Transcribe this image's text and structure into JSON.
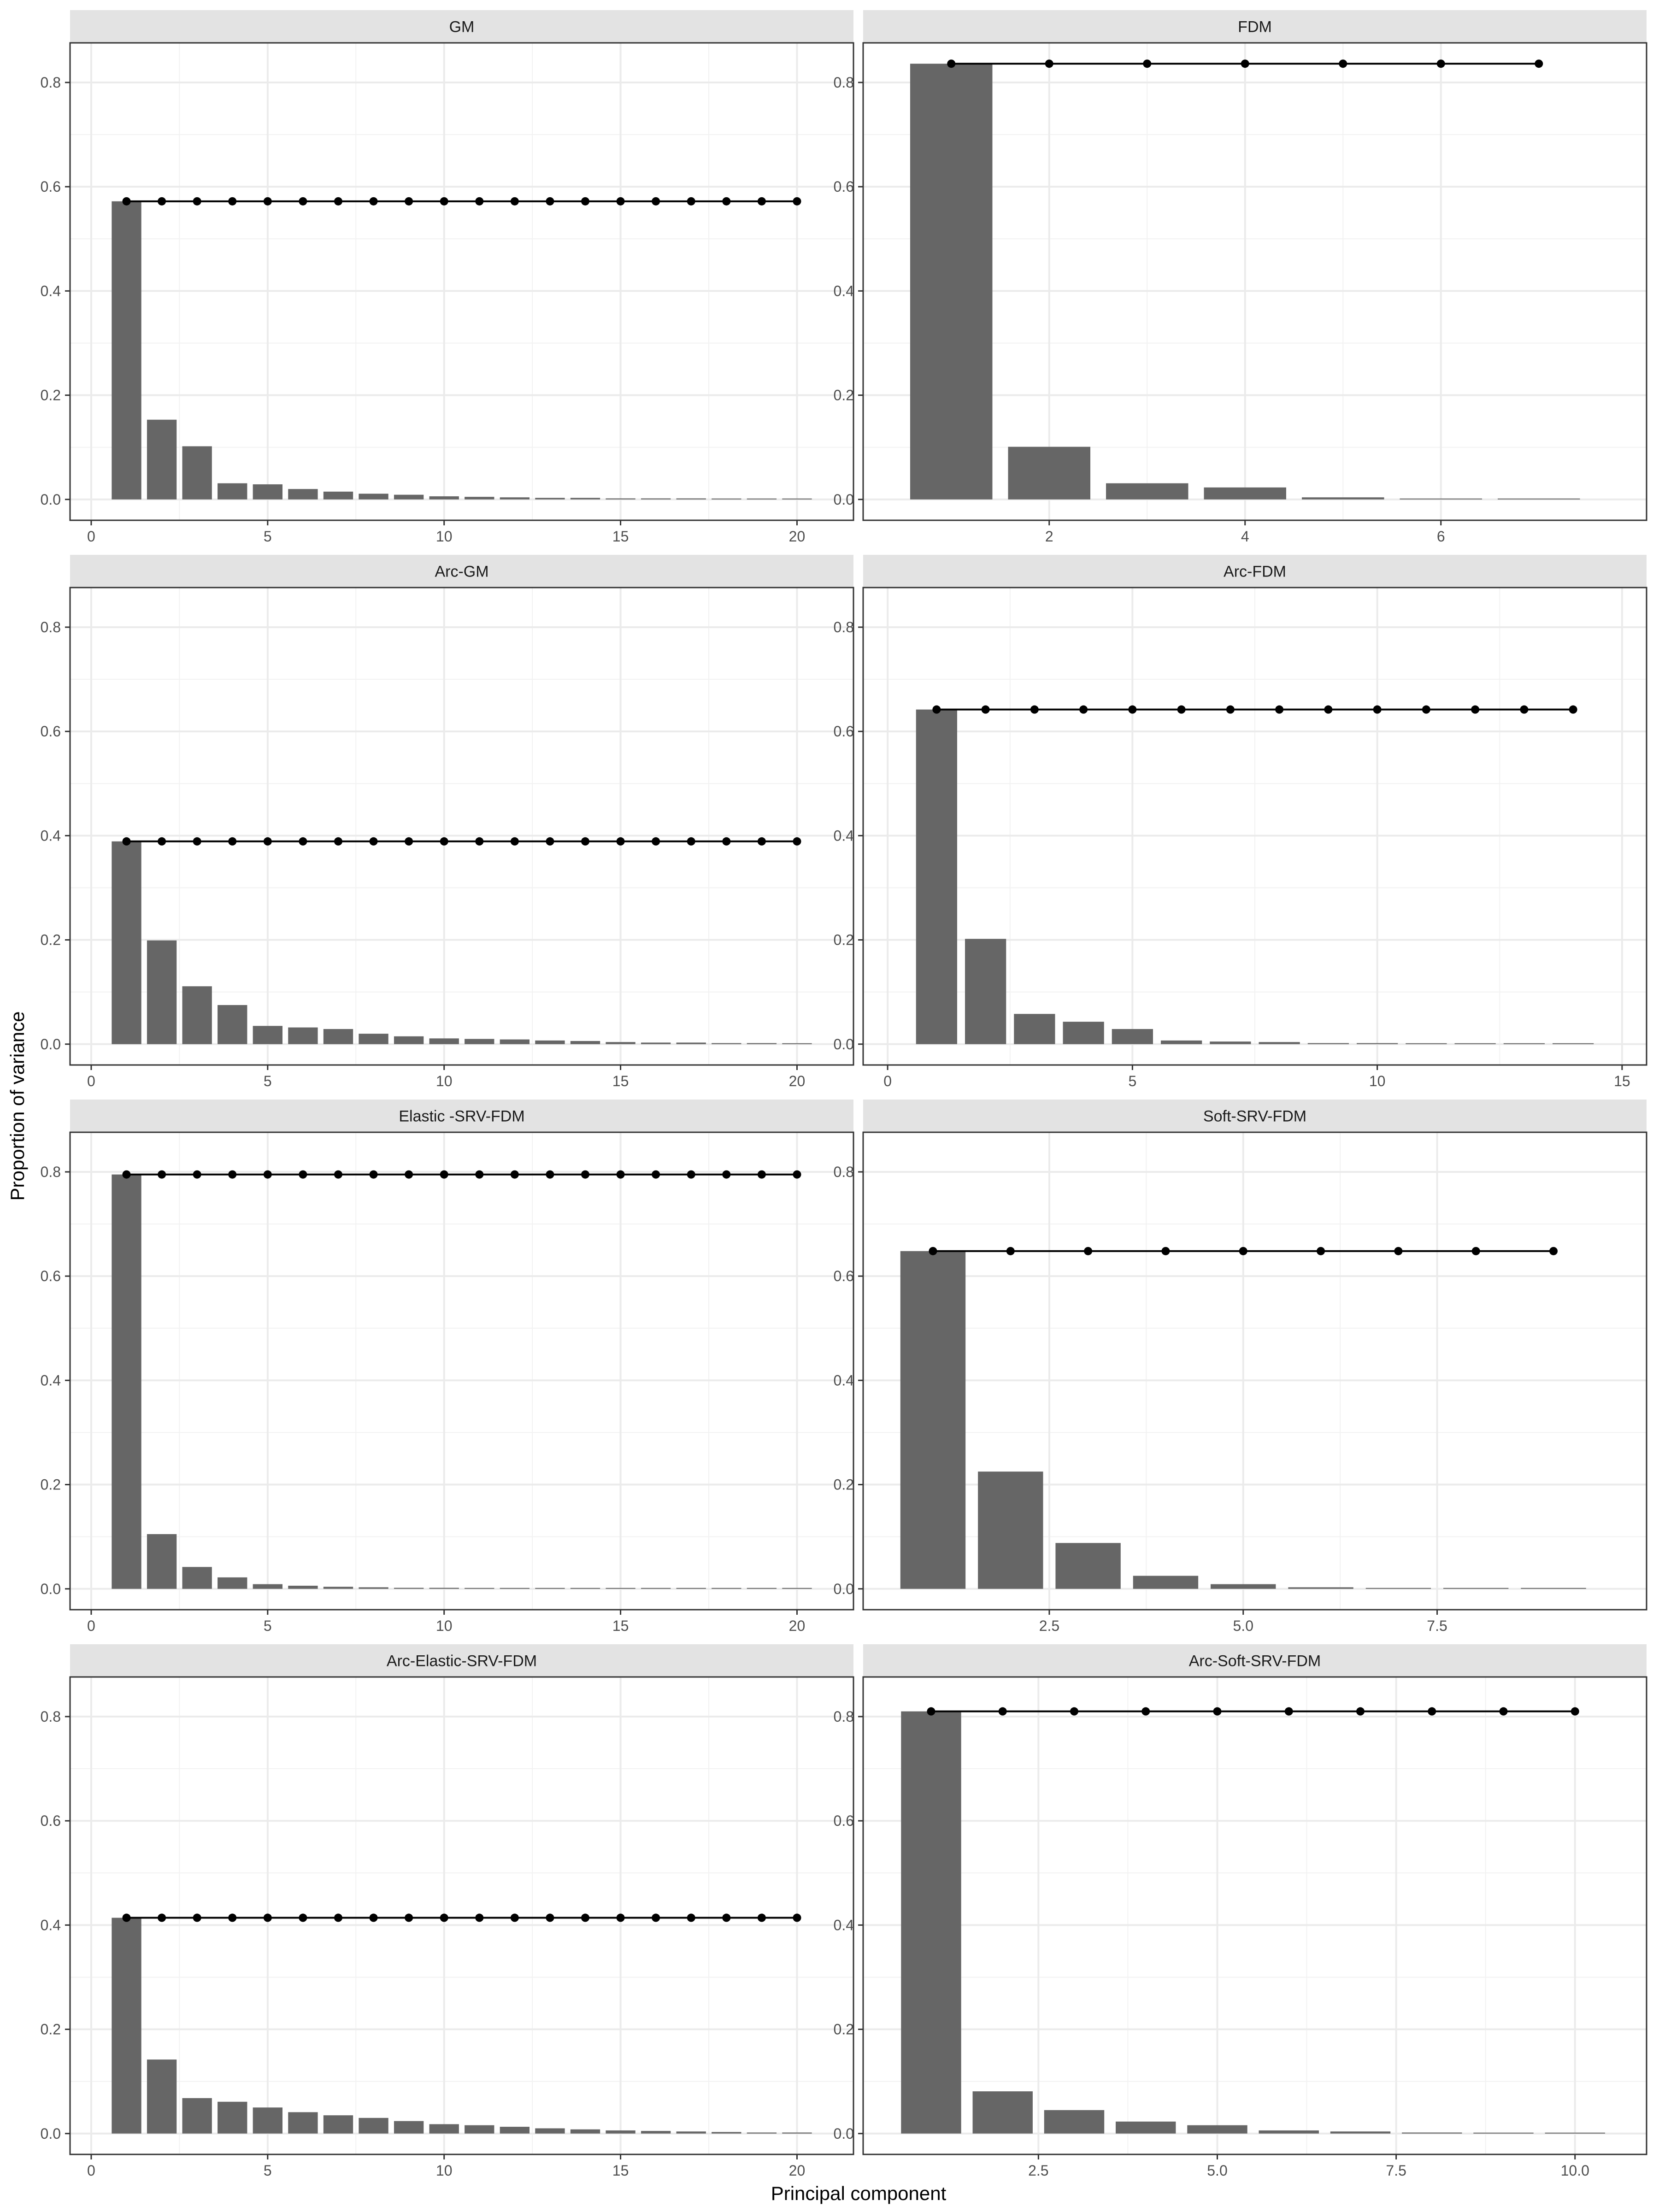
{
  "figure": {
    "ylabel": "Proportion of variance",
    "xlabel": "Principal component"
  },
  "colors": {
    "bar": "#666666",
    "line": "#000000",
    "strip_bg": "#e3e3e3",
    "grid": "#ebebeb",
    "panel_border": "#333333"
  },
  "chart_data": [
    {
      "type": "bar",
      "title": "GM",
      "x": [
        1,
        2,
        3,
        4,
        5,
        6,
        7,
        8,
        9,
        10,
        11,
        12,
        13,
        14,
        15,
        16,
        17,
        18,
        19,
        20
      ],
      "values": [
        0.572,
        0.153,
        0.102,
        0.031,
        0.029,
        0.02,
        0.015,
        0.011,
        0.009,
        0.006,
        0.005,
        0.004,
        0.003,
        0.003,
        0.002,
        0.002,
        0.002,
        0.001,
        0.001,
        0.001
      ],
      "line_y": 0.572,
      "xlim": [
        -0.6,
        21.6
      ],
      "ylim": [
        -0.04,
        0.876
      ],
      "xticks": [
        "0",
        "5",
        "10",
        "15",
        "20"
      ],
      "xtick_values": [
        0,
        5,
        10,
        15,
        20
      ],
      "yticks": [
        "0.0",
        "0.2",
        "0.4",
        "0.6",
        "0.8"
      ],
      "ytick_values": [
        0,
        0.2,
        0.4,
        0.6,
        0.8
      ],
      "grid": true
    },
    {
      "type": "bar",
      "title": "FDM",
      "x": [
        1,
        2,
        3,
        4,
        5,
        6,
        7
      ],
      "values": [
        0.836,
        0.101,
        0.031,
        0.023,
        0.004,
        0.001,
        0.0005
      ],
      "line_y": 0.836,
      "xlim": [
        0.1,
        8.1
      ],
      "ylim": [
        -0.04,
        0.876
      ],
      "xticks": [
        "2",
        "4",
        "6"
      ],
      "xtick_values": [
        2,
        4,
        6
      ],
      "yticks": [
        "0.0",
        "0.2",
        "0.4",
        "0.6",
        "0.8"
      ],
      "ytick_values": [
        0,
        0.2,
        0.4,
        0.6,
        0.8
      ],
      "grid": true
    },
    {
      "type": "bar",
      "title": "Arc-GM",
      "x": [
        1,
        2,
        3,
        4,
        5,
        6,
        7,
        8,
        9,
        10,
        11,
        12,
        13,
        14,
        15,
        16,
        17,
        18,
        19,
        20
      ],
      "values": [
        0.389,
        0.199,
        0.111,
        0.075,
        0.035,
        0.032,
        0.029,
        0.02,
        0.015,
        0.011,
        0.01,
        0.009,
        0.007,
        0.006,
        0.004,
        0.003,
        0.003,
        0.002,
        0.002,
        0.001
      ],
      "line_y": 0.389,
      "xlim": [
        -0.6,
        21.6
      ],
      "ylim": [
        -0.04,
        0.876
      ],
      "xticks": [
        "0",
        "5",
        "10",
        "15",
        "20"
      ],
      "xtick_values": [
        0,
        5,
        10,
        15,
        20
      ],
      "yticks": [
        "0.0",
        "0.2",
        "0.4",
        "0.6",
        "0.8"
      ],
      "ytick_values": [
        0,
        0.2,
        0.4,
        0.6,
        0.8
      ],
      "grid": true
    },
    {
      "type": "bar",
      "title": "Arc-FDM",
      "x": [
        1,
        2,
        3,
        4,
        5,
        6,
        7,
        8,
        9,
        10,
        11,
        12,
        13,
        14
      ],
      "values": [
        0.642,
        0.202,
        0.058,
        0.043,
        0.029,
        0.007,
        0.005,
        0.004,
        0.002,
        0.002,
        0.001,
        0.001,
        0.001,
        0.0005
      ],
      "line_y": 0.642,
      "xlim": [
        -0.5,
        15.5
      ],
      "ylim": [
        -0.04,
        0.876
      ],
      "xticks": [
        "0",
        "5",
        "10",
        "15"
      ],
      "xtick_values": [
        0,
        5,
        10,
        15
      ],
      "yticks": [
        "0.0",
        "0.2",
        "0.4",
        "0.6",
        "0.8"
      ],
      "ytick_values": [
        0,
        0.2,
        0.4,
        0.6,
        0.8
      ],
      "grid": true
    },
    {
      "type": "bar",
      "title": "Elastic -SRV-FDM",
      "x": [
        1,
        2,
        3,
        4,
        5,
        6,
        7,
        8,
        9,
        10,
        11,
        12,
        13,
        14,
        15,
        16,
        17,
        18,
        19,
        20
      ],
      "values": [
        0.795,
        0.105,
        0.042,
        0.022,
        0.009,
        0.006,
        0.004,
        0.003,
        0.002,
        0.002,
        0.001,
        0.001,
        0.001,
        0.001,
        0.001,
        0.0005,
        0.0005,
        0.0005,
        0.0005,
        0.0005
      ],
      "line_y": 0.795,
      "xlim": [
        -0.6,
        21.6
      ],
      "ylim": [
        -0.04,
        0.876
      ],
      "xticks": [
        "0",
        "5",
        "10",
        "15",
        "20"
      ],
      "xtick_values": [
        0,
        5,
        10,
        15,
        20
      ],
      "yticks": [
        "0.0",
        "0.2",
        "0.4",
        "0.6",
        "0.8"
      ],
      "ytick_values": [
        0,
        0.2,
        0.4,
        0.6,
        0.8
      ],
      "grid": true
    },
    {
      "type": "bar",
      "title": "Soft-SRV-FDM",
      "x": [
        1,
        2,
        3,
        4,
        5,
        6,
        7,
        8,
        9
      ],
      "values": [
        0.648,
        0.225,
        0.088,
        0.025,
        0.009,
        0.003,
        0.001,
        0.001,
        0.0005
      ],
      "line_y": 0.648,
      "xlim": [
        0.1,
        10.2
      ],
      "ylim": [
        -0.04,
        0.876
      ],
      "xticks": [
        "2.5",
        "5.0",
        "7.5"
      ],
      "xtick_values": [
        2.5,
        5,
        7.5
      ],
      "yticks": [
        "0.0",
        "0.2",
        "0.4",
        "0.6",
        "0.8"
      ],
      "ytick_values": [
        0,
        0.2,
        0.4,
        0.6,
        0.8
      ],
      "grid": true
    },
    {
      "type": "bar",
      "title": "Arc-Elastic-SRV-FDM",
      "x": [
        1,
        2,
        3,
        4,
        5,
        6,
        7,
        8,
        9,
        10,
        11,
        12,
        13,
        14,
        15,
        16,
        17,
        18,
        19,
        20
      ],
      "values": [
        0.414,
        0.142,
        0.068,
        0.061,
        0.05,
        0.041,
        0.035,
        0.03,
        0.024,
        0.018,
        0.016,
        0.013,
        0.01,
        0.008,
        0.006,
        0.005,
        0.004,
        0.003,
        0.002,
        0.002
      ],
      "line_y": 0.414,
      "xlim": [
        -0.6,
        21.6
      ],
      "ylim": [
        -0.04,
        0.876
      ],
      "xticks": [
        "0",
        "5",
        "10",
        "15",
        "20"
      ],
      "xtick_values": [
        0,
        5,
        10,
        15,
        20
      ],
      "yticks": [
        "0.0",
        "0.2",
        "0.4",
        "0.6",
        "0.8"
      ],
      "ytick_values": [
        0,
        0.2,
        0.4,
        0.6,
        0.8
      ],
      "grid": true
    },
    {
      "type": "bar",
      "title": "Arc-Soft-SRV-FDM",
      "x": [
        1,
        2,
        3,
        4,
        5,
        6,
        7,
        8,
        9,
        10
      ],
      "values": [
        0.81,
        0.081,
        0.045,
        0.023,
        0.016,
        0.006,
        0.004,
        0.002,
        0.001,
        0.001
      ],
      "line_y": 0.81,
      "xlim": [
        0.05,
        11.0
      ],
      "ylim": [
        -0.04,
        0.876
      ],
      "xticks": [
        "2.5",
        "5.0",
        "7.5",
        "10.0"
      ],
      "xtick_values": [
        2.5,
        5,
        7.5,
        10
      ],
      "yticks": [
        "0.0",
        "0.2",
        "0.4",
        "0.6",
        "0.8"
      ],
      "ytick_values": [
        0,
        0.2,
        0.4,
        0.6,
        0.8
      ],
      "grid": true
    }
  ]
}
